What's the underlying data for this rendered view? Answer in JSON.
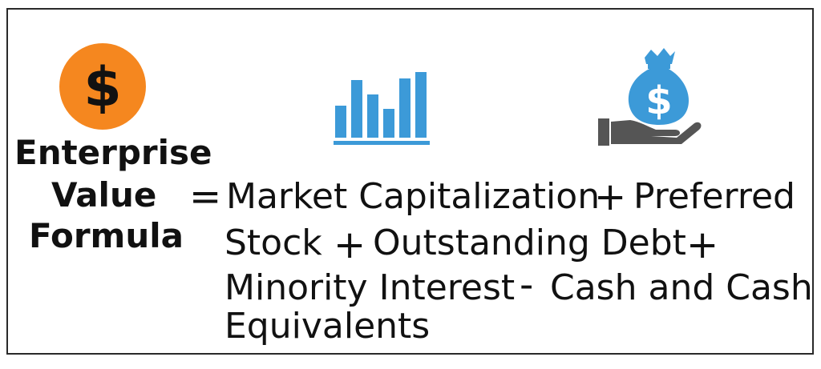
{
  "title": {
    "lines": [
      "Enterprise",
      "Value",
      "Formula"
    ]
  },
  "equals_sign": "=",
  "formula": {
    "line1_a": "Market Capitalization",
    "plus_1": "+",
    "line1_b": "Preferred",
    "line2_a": "Stock",
    "plus_2": "+",
    "line2_b": "Outstanding Debt",
    "plus_3": "+",
    "line3_a": "Minority Interest",
    "minus": "-",
    "line3_b": "Cash and Cash",
    "line4": "Equivalents"
  },
  "icons": {
    "dollar_coin": {
      "name": "dollar-coin-icon",
      "glyph": "$",
      "color": "#f5871f"
    },
    "bar_chart": {
      "name": "bar-chart-icon",
      "color": "#3c9ad8"
    },
    "money_bag": {
      "name": "money-bag-hand-icon",
      "glyph": "$",
      "color": "#3c9ad8",
      "hand_color": "#555555"
    }
  }
}
